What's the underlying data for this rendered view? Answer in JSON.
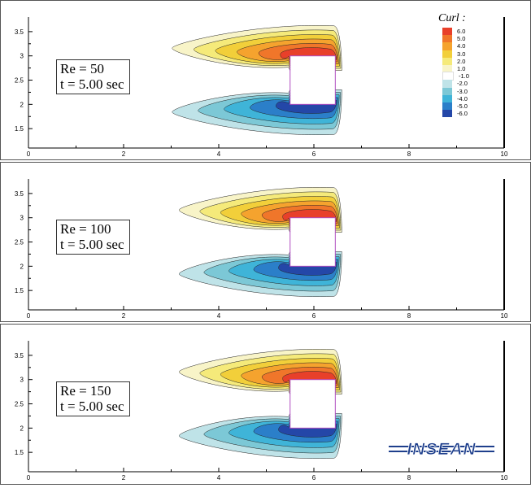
{
  "chart_data": [
    {
      "type": "contour",
      "annotation": [
        "Re = 50",
        "t = 5.00 sec"
      ],
      "xlim": [
        0,
        10
      ],
      "ylim": [
        1.1,
        3.8
      ],
      "x_ticks": [
        "0",
        "2",
        "4",
        "6",
        "8",
        "10"
      ],
      "y_ticks": [
        "1.5",
        "2",
        "2.5",
        "3",
        "3.5"
      ]
    },
    {
      "type": "contour",
      "annotation": [
        "Re = 100",
        "t = 5.00 sec"
      ],
      "xlim": [
        0,
        10
      ],
      "ylim": [
        1.1,
        3.8
      ],
      "x_ticks": [
        "0",
        "2",
        "4",
        "6",
        "8",
        "10"
      ],
      "y_ticks": [
        "1.5",
        "2",
        "2.5",
        "3",
        "3.5"
      ]
    },
    {
      "type": "contour",
      "annotation": [
        "Re = 150",
        "t = 5.00 sec"
      ],
      "xlim": [
        0,
        10
      ],
      "ylim": [
        1.1,
        3.8
      ],
      "x_ticks": [
        "0",
        "2",
        "4",
        "6",
        "8",
        "10"
      ],
      "y_ticks": [
        "1.5",
        "2",
        "2.5",
        "3",
        "3.5"
      ]
    }
  ],
  "legend": {
    "title": "Curl :",
    "levels": [
      {
        "label": "6.0",
        "color": "#e8402a"
      },
      {
        "label": "5.0",
        "color": "#f0762a"
      },
      {
        "label": "4.0",
        "color": "#f5a32e"
      },
      {
        "label": "3.0",
        "color": "#f2cf3a"
      },
      {
        "label": "2.0",
        "color": "#f5ea7a"
      },
      {
        "label": "1.0",
        "color": "#f8f4c8"
      },
      {
        "label": "-1.0",
        "color": "#ffffff"
      },
      {
        "label": "-2.0",
        "color": "#bfe3e8"
      },
      {
        "label": "-3.0",
        "color": "#7cc8d6"
      },
      {
        "label": "-4.0",
        "color": "#3fb4d8"
      },
      {
        "label": "-5.0",
        "color": "#2b7fc9"
      },
      {
        "label": "-6.0",
        "color": "#2447a8"
      }
    ]
  },
  "obstacle": {
    "x_range": [
      5.5,
      6.45
    ],
    "y_range": [
      2.0,
      3.0
    ]
  },
  "logo_text": "INSEAN"
}
